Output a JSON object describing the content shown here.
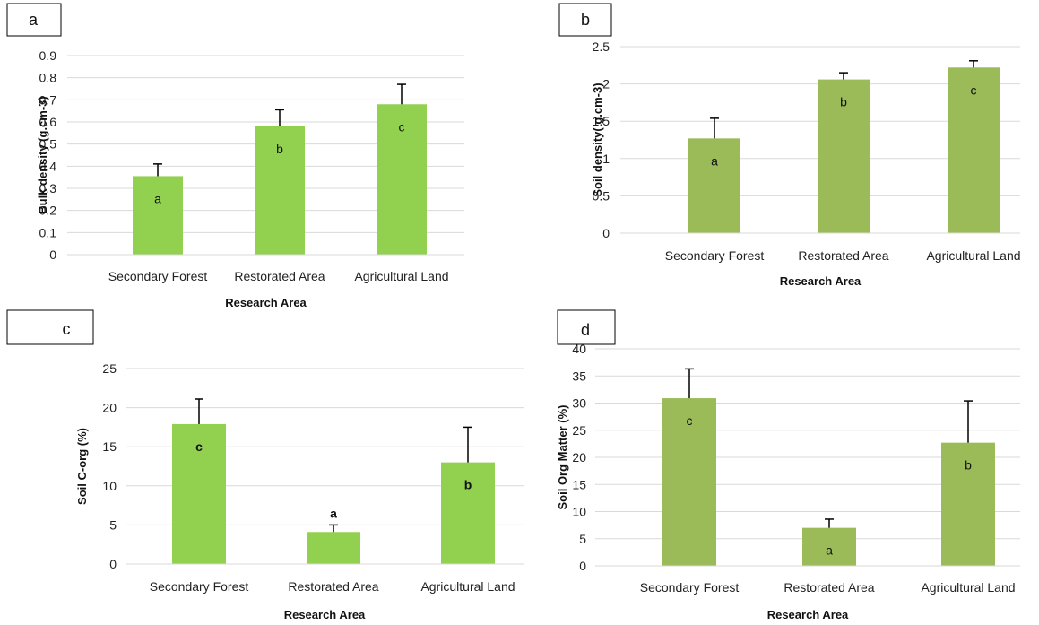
{
  "chart_data": [
    {
      "panel_label": "a",
      "type": "bar",
      "categories": [
        "Secondary Forest",
        "Restorated Area",
        "Agricultural Land"
      ],
      "values": [
        0.355,
        0.58,
        0.68
      ],
      "errors": [
        0.055,
        0.075,
        0.09
      ],
      "value_labels": [
        "a",
        "b",
        "c"
      ],
      "value_labels_bold": false,
      "xlabel": "Research Area",
      "ylabel": "Bulk density (g.cm-3)",
      "ylim": [
        0,
        0.9
      ],
      "yticks": [
        "0",
        "0.1",
        "0.2",
        "0.3",
        "0.4",
        "0.5",
        "0.6",
        "0.7",
        "0.8",
        "0.9"
      ],
      "grid": true,
      "bar_color": "#92d050"
    },
    {
      "panel_label": "b",
      "type": "bar",
      "categories": [
        "Secondary Forest",
        "Restorated Area",
        "Agricultural Land"
      ],
      "values": [
        1.27,
        2.06,
        2.22
      ],
      "errors": [
        0.27,
        0.09,
        0.09
      ],
      "value_labels": [
        "a",
        "b",
        "c"
      ],
      "value_labels_bold": false,
      "xlabel": "Research Area",
      "ylabel": "Soil density( g.cm-3)",
      "ylim": [
        0,
        2.5
      ],
      "yticks": [
        "0",
        "0.5",
        "1",
        "1.5",
        "2",
        "2.5"
      ],
      "grid": true,
      "bar_color": "#9bbb59"
    },
    {
      "panel_label": "c",
      "type": "bar",
      "categories": [
        "Secondary Forest",
        "Restorated Area",
        "Agricultural Land"
      ],
      "values": [
        17.9,
        4.1,
        13.0
      ],
      "errors": [
        3.2,
        0.9,
        4.5
      ],
      "value_labels": [
        "c",
        "a",
        "b"
      ],
      "value_labels_bold": true,
      "xlabel": "Research Area",
      "ylabel": "Soil C-org  (%)",
      "ylim": [
        0,
        25
      ],
      "yticks": [
        "0",
        "5",
        "10",
        "15",
        "20",
        "25"
      ],
      "grid": true,
      "bar_color": "#92d050"
    },
    {
      "panel_label": "d",
      "type": "bar",
      "categories": [
        "Secondary Forest",
        "Restorated Area",
        "Agricultural Land"
      ],
      "values": [
        30.9,
        7.0,
        22.7
      ],
      "errors": [
        5.4,
        1.6,
        7.7
      ],
      "value_labels": [
        "c",
        "a",
        "b"
      ],
      "value_labels_bold": false,
      "xlabel": "Research Area",
      "ylabel": "Soil Org Matter (%)",
      "ylim": [
        0,
        40
      ],
      "yticks": [
        "0",
        "5",
        "10",
        "15",
        "20",
        "25",
        "30",
        "35",
        "40"
      ],
      "grid": true,
      "bar_color": "#9bbb59"
    }
  ]
}
